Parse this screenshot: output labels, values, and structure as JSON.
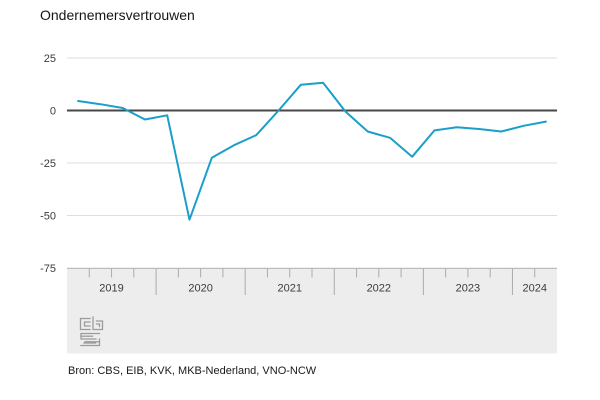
{
  "page": {
    "title": "Ondernemersvertrouwen",
    "source": "Bron: CBS, EIB, KVK, MKB-Nederland, VNO-NCW"
  },
  "logo": {
    "name": "cbs-logo"
  },
  "chart_data": {
    "type": "line",
    "title": "Ondernemersvertrouwen",
    "xlabel": "",
    "ylabel": "",
    "x": [
      "2019-Q1",
      "2019-Q2",
      "2019-Q3",
      "2019-Q4",
      "2020-Q1",
      "2020-Q2",
      "2020-Q3",
      "2020-Q4",
      "2021-Q1",
      "2021-Q2",
      "2021-Q3",
      "2021-Q4",
      "2022-Q1",
      "2022-Q2",
      "2022-Q3",
      "2022-Q4",
      "2023-Q1",
      "2023-Q2",
      "2023-Q3",
      "2023-Q4",
      "2024-Q1",
      "2024-Q2"
    ],
    "values": [
      4.5,
      3.0,
      1.2,
      -4.3,
      -2.3,
      -52.0,
      -22.5,
      -16.5,
      -11.7,
      0.0,
      12.3,
      13.2,
      -0.5,
      -10.0,
      -13.0,
      -22.0,
      -9.5,
      -8.0,
      -8.8,
      -10.0,
      -7.3,
      -5.3
    ],
    "ylim": [
      -75,
      25
    ],
    "yticks": [
      25,
      0,
      -25,
      -50,
      -75
    ],
    "year_labels": [
      "2019",
      "2020",
      "2021",
      "2022",
      "2023",
      "2024"
    ],
    "quarters_shown": 22,
    "legend_position": "none",
    "grid": "horizontal",
    "zero_line": true,
    "colors": {
      "line": "#1a9fc9",
      "grid": "#dedede",
      "zero_line": "#474747",
      "axis_band_fill": "#ededed",
      "axis_band_edge": "#bdbdbd",
      "tick": "#ababab",
      "label_text": "#3c3c3c",
      "logo": "#9c9c9c"
    },
    "source": "Bron: CBS, EIB, KVK, MKB-Nederland, VNO-NCW"
  }
}
